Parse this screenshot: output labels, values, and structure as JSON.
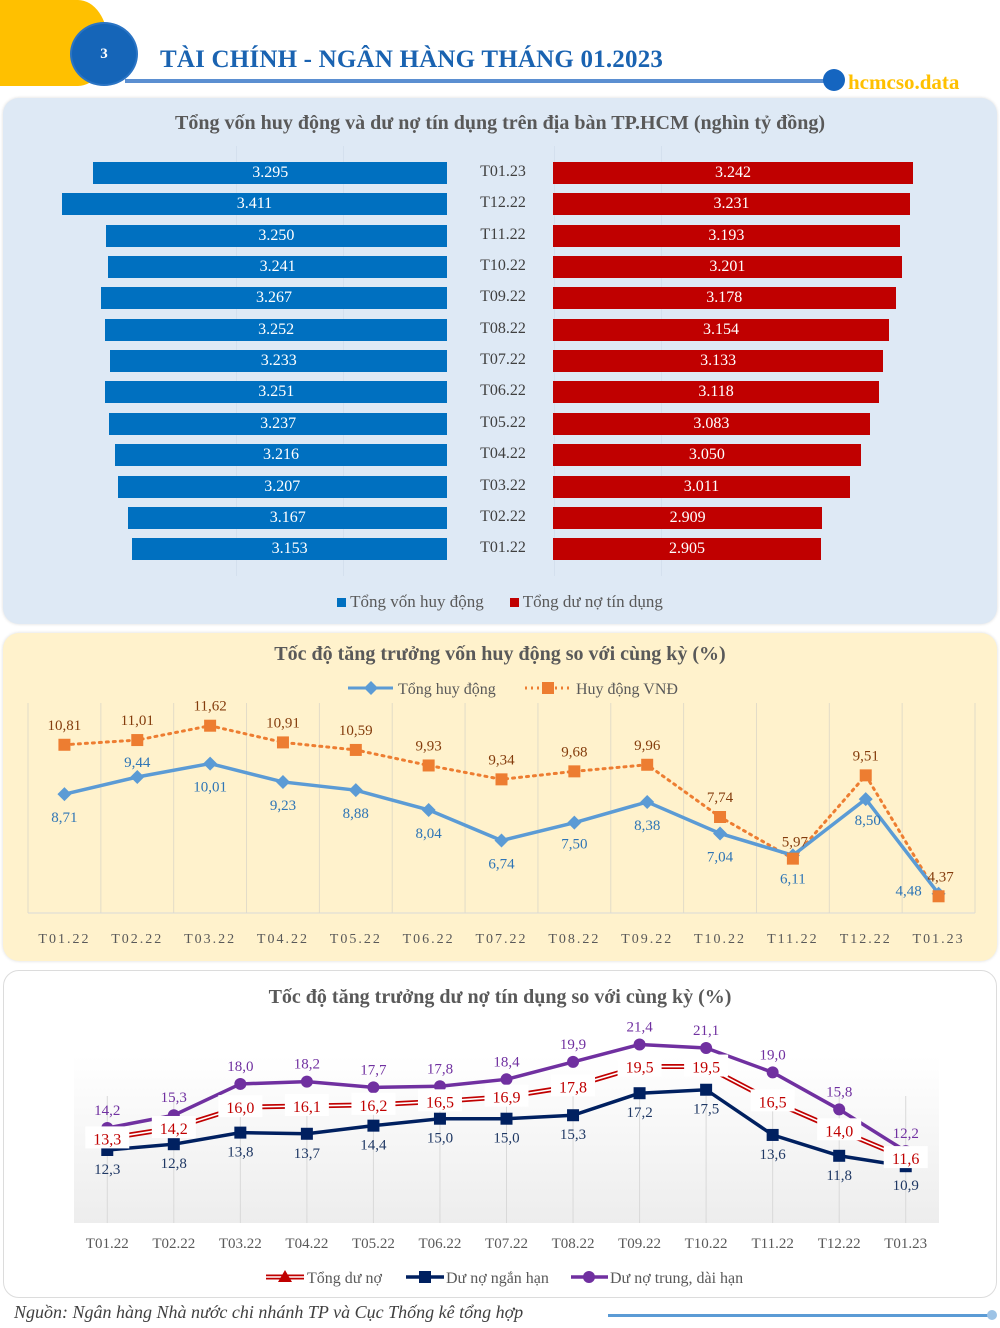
{
  "header": {
    "section_number": "3",
    "title": "TÀI CHÍNH - NGÂN HÀNG THÁNG 01.2023",
    "brand": "hcmcso.data"
  },
  "colors": {
    "accent_yellow": "#FFC000",
    "accent_blue": "#1565B8",
    "bar_blue": "#0070C0",
    "bar_red": "#C00000",
    "line_blue": "#5B9BD5",
    "line_orange": "#ED7D31",
    "line_red": "#C00000",
    "line_navy": "#002060",
    "line_purple": "#7030A0"
  },
  "chart_data": [
    {
      "type": "bar",
      "orientation": "horizontal-butterfly",
      "title": "Tổng vốn huy động và dư nợ tín dụng trên địa bàn TP.HCM (nghìn tỷ đồng)",
      "categories": [
        "T01.23",
        "T12.22",
        "T11.22",
        "T10.22",
        "T09.22",
        "T08.22",
        "T07.22",
        "T06.22",
        "T05.22",
        "T04.22",
        "T03.22",
        "T02.22",
        "T01.22"
      ],
      "series": [
        {
          "name": "Tổng vốn huy động",
          "color": "#0070C0",
          "values": [
            3295,
            3411,
            3250,
            3241,
            3267,
            3252,
            3233,
            3251,
            3237,
            3216,
            3207,
            3167,
            3153
          ],
          "labels": [
            "3.295",
            "3.411",
            "3.250",
            "3.241",
            "3.267",
            "3.252",
            "3.233",
            "3.251",
            "3.237",
            "3.216",
            "3.207",
            "3.167",
            "3.153"
          ]
        },
        {
          "name": "Tổng dư nợ tín dụng",
          "color": "#C00000",
          "values": [
            3242,
            3231,
            3193,
            3201,
            3178,
            3154,
            3133,
            3118,
            3083,
            3050,
            3011,
            2909,
            2905
          ],
          "labels": [
            "3.242",
            "3.231",
            "3.193",
            "3.201",
            "3.178",
            "3.154",
            "3.133",
            "3.118",
            "3.083",
            "3.050",
            "3.011",
            "2.909",
            "2.905"
          ]
        }
      ],
      "legend": "bottom",
      "grid": true
    },
    {
      "type": "line",
      "title": "Tốc độ tăng trưởng vốn huy động so với cùng kỳ (%)",
      "categories": [
        "T01.22",
        "T02.22",
        "T03.22",
        "T04.22",
        "T05.22",
        "T06.22",
        "T07.22",
        "T08.22",
        "T09.22",
        "T10.22",
        "T11.22",
        "T12.22",
        "T01.23"
      ],
      "series": [
        {
          "name": "Tổng huy động",
          "color": "#5B9BD5",
          "marker": "diamond",
          "style": "solid",
          "values": [
            8.71,
            9.44,
            10.01,
            9.23,
            8.88,
            8.04,
            6.74,
            7.5,
            8.38,
            7.04,
            6.11,
            8.5,
            4.48
          ],
          "labels": [
            "8,71",
            "9,44",
            "10,01",
            "9,23",
            "8,88",
            "8,04",
            "6,74",
            "7,50",
            "8,38",
            "7,04",
            "6,11",
            "8,50",
            "4,48"
          ]
        },
        {
          "name": "Huy động VNĐ",
          "color": "#ED7D31",
          "marker": "square",
          "style": "dotted",
          "values": [
            10.81,
            11.01,
            11.62,
            10.91,
            10.59,
            9.93,
            9.34,
            9.68,
            9.96,
            7.74,
            5.97,
            9.51,
            4.37
          ],
          "labels": [
            "10,81",
            "11,01",
            "11,62",
            "10,91",
            "10,59",
            "9,93",
            "9,34",
            "9,68",
            "9,96",
            "7,74",
            "5,97",
            "9,51",
            "4,37"
          ]
        }
      ],
      "ylim": [
        4,
        12.5
      ],
      "legend": "top",
      "grid": true
    },
    {
      "type": "line",
      "title": "Tốc độ tăng trưởng dư nợ tín dụng so với cùng kỳ (%)",
      "categories": [
        "T01.22",
        "T02.22",
        "T03.22",
        "T04.22",
        "T05.22",
        "T06.22",
        "T07.22",
        "T08.22",
        "T09.22",
        "T10.22",
        "T11.22",
        "T12.22",
        "T01.23"
      ],
      "series": [
        {
          "name": "Tổng dư nợ",
          "color": "#C00000",
          "marker": "triangle",
          "style": "double",
          "values": [
            13.3,
            14.2,
            16.0,
            16.1,
            16.2,
            16.5,
            16.9,
            17.8,
            19.5,
            19.5,
            16.5,
            14.0,
            11.6
          ],
          "labels": [
            "13,3",
            "14,2",
            "16,0",
            "16,1",
            "16,2",
            "16,5",
            "16,9",
            "17,8",
            "19,5",
            "19,5",
            "16,5",
            "14,0",
            "11,6"
          ]
        },
        {
          "name": "Dư nợ ngắn hạn",
          "color": "#002060",
          "marker": "square",
          "style": "solid",
          "values": [
            12.3,
            12.8,
            13.8,
            13.7,
            14.4,
            15.0,
            15.0,
            15.3,
            17.2,
            17.5,
            13.6,
            11.8,
            10.9
          ],
          "labels": [
            "12,3",
            "12,8",
            "13,8",
            "13,7",
            "14,4",
            "15,0",
            "15,0",
            "15,3",
            "17,2",
            "17,5",
            "13,6",
            "11,8",
            "10,9"
          ]
        },
        {
          "name": "Dư nợ trung, dài hạn",
          "color": "#7030A0",
          "marker": "circle",
          "style": "solid",
          "values": [
            14.2,
            15.3,
            18.0,
            18.2,
            17.7,
            17.8,
            18.4,
            19.9,
            21.4,
            21.1,
            19.0,
            15.8,
            12.2
          ],
          "labels": [
            "14,2",
            "15,3",
            "18,0",
            "18,2",
            "17,7",
            "17,8",
            "18,4",
            "19,9",
            "21,4",
            "21,1",
            "19,0",
            "15,8",
            "12,2"
          ]
        }
      ],
      "ylim": [
        6,
        23
      ],
      "legend": "bottom",
      "grid": true
    }
  ],
  "footer": {
    "source": "Nguồn: Ngân hàng Nhà nước chi nhánh TP và Cục Thống kê tổng hợp"
  }
}
